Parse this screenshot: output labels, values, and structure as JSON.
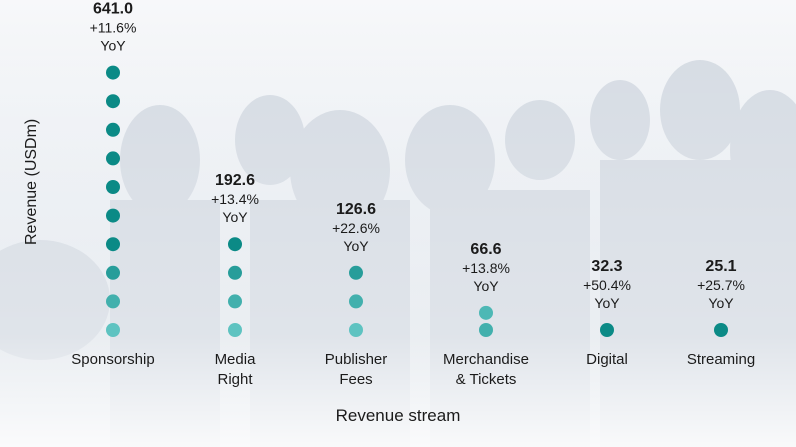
{
  "chart_data": {
    "type": "dot-column",
    "xlabel": "Revenue stream",
    "ylabel": "Revenue (USDm)",
    "categories": [
      "Sponsorship",
      "Media Right",
      "Publisher Fees",
      "Merchandise & Tickets",
      "Digital",
      "Streaming"
    ],
    "category_lines": [
      [
        "Sponsorship"
      ],
      [
        "Media",
        "Right"
      ],
      [
        "Publisher",
        "Fees"
      ],
      [
        "Merchandise",
        "& Tickets"
      ],
      [
        "Digital"
      ],
      [
        "Streaming"
      ]
    ],
    "values": [
      641.0,
      192.6,
      126.6,
      66.6,
      32.3,
      25.1
    ],
    "value_labels": [
      "641.0",
      "192.6",
      "126.6",
      "66.6",
      "32.3",
      "25.1"
    ],
    "yoy_labels": [
      "+11.6%",
      "+13.4%",
      "+22.6%",
      "+13.8%",
      "+50.4%",
      "+25.7%"
    ],
    "yoy_suffix": "YoY",
    "dot_counts": [
      10,
      4,
      3,
      1.5,
      1,
      1
    ],
    "colors": {
      "dot_dark": "#0b8a86",
      "dot_light": "#5ec3c1",
      "text": "#1b1b1b"
    }
  }
}
